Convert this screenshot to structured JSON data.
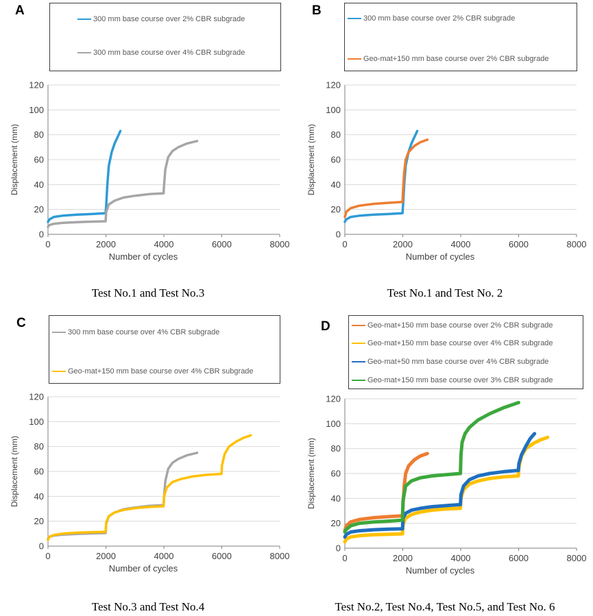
{
  "colors": {
    "blue_light": "#2e9bd6",
    "gray": "#a6a6a6",
    "orange": "#ed7d31",
    "yellow": "#ffc000",
    "blue_dark": "#1f6fc0",
    "green": "#3ca83c",
    "axis": "#7f7f7f",
    "grid": "#d9d9d9"
  },
  "chart_data": [
    {
      "type": "line",
      "panel_label": "A",
      "caption": "Test No.1 and Test No.3",
      "xlabel": "Number of cycles",
      "ylabel": "Displacement (mm)",
      "xlim": [
        0,
        8000
      ],
      "ylim": [
        0,
        120
      ],
      "xticks": [
        0,
        2000,
        4000,
        6000,
        8000
      ],
      "yticks": [
        0,
        20,
        40,
        60,
        80,
        100,
        120
      ],
      "grid": "horizontal",
      "legend_position": "top",
      "series": [
        {
          "name": "300 mm base course over 2% CBR subgrade",
          "color": "#2e9bd6",
          "x": [
            0,
            50,
            200,
            500,
            1000,
            1500,
            1990,
            2010,
            2050,
            2100,
            2200,
            2300,
            2400,
            2500
          ],
          "y": [
            10,
            12,
            14,
            15,
            15.8,
            16.3,
            17,
            23,
            40,
            55,
            66,
            73,
            78,
            83
          ]
        },
        {
          "name": "300 mm base course over 4% CBR subgrade",
          "color": "#a6a6a6",
          "x": [
            0,
            50,
            200,
            500,
            1000,
            1500,
            1990,
            2010,
            2100,
            2300,
            2600,
            3000,
            3500,
            3990,
            4010,
            4050,
            4150,
            4300,
            4500,
            4800,
            5150
          ],
          "y": [
            6,
            7.5,
            8.5,
            9.2,
            9.8,
            10.2,
            10.5,
            18,
            24,
            27,
            29.5,
            31,
            32.3,
            33,
            40,
            52,
            62,
            67,
            70,
            73,
            75
          ]
        }
      ]
    },
    {
      "type": "line",
      "panel_label": "B",
      "caption": "Test No.1 and Test No. 2",
      "xlabel": "Number of cycles",
      "ylabel": "Displacement (mm)",
      "xlim": [
        0,
        8000
      ],
      "ylim": [
        0,
        120
      ],
      "xticks": [
        0,
        2000,
        4000,
        6000,
        8000
      ],
      "yticks": [
        0,
        20,
        40,
        60,
        80,
        100,
        120
      ],
      "grid": "horizontal",
      "legend_position": "top",
      "series": [
        {
          "name": "300 mm base course over 2% CBR subgrade",
          "color": "#2e9bd6",
          "x": [
            0,
            50,
            200,
            500,
            1000,
            1500,
            1990,
            2010,
            2050,
            2100,
            2200,
            2300,
            2400,
            2500
          ],
          "y": [
            10,
            12,
            14,
            15,
            15.8,
            16.3,
            17,
            23,
            40,
            55,
            66,
            73,
            78,
            83
          ]
        },
        {
          "name": "Geo-mat+150 mm base course over 2% CBR subgrade",
          "color": "#ed7d31",
          "x": [
            0,
            50,
            200,
            500,
            1000,
            1500,
            1990,
            2010,
            2050,
            2100,
            2200,
            2400,
            2600,
            2850
          ],
          "y": [
            14,
            18,
            21,
            23,
            24.5,
            25.3,
            26,
            35,
            50,
            60,
            66,
            71,
            74,
            76
          ]
        }
      ]
    },
    {
      "type": "line",
      "panel_label": "C",
      "caption": "Test No.3 and Test No.4",
      "xlabel": "Number of cycles",
      "ylabel": "Displacement (mm)",
      "xlim": [
        0,
        8000
      ],
      "ylim": [
        0,
        120
      ],
      "xticks": [
        0,
        2000,
        4000,
        6000,
        8000
      ],
      "yticks": [
        0,
        20,
        40,
        60,
        80,
        100,
        120
      ],
      "grid": "horizontal",
      "legend_position": "top",
      "series": [
        {
          "name": "300 mm base course over 4% CBR subgrade",
          "color": "#a6a6a6",
          "x": [
            0,
            50,
            200,
            500,
            1000,
            1500,
            1990,
            2010,
            2100,
            2300,
            2600,
            3000,
            3500,
            3990,
            4010,
            4050,
            4150,
            4300,
            4500,
            4800,
            5150
          ],
          "y": [
            6,
            7.5,
            8.5,
            9.2,
            9.8,
            10.2,
            10.5,
            18,
            24,
            27,
            29.5,
            31,
            32.3,
            33,
            40,
            52,
            62,
            67,
            70,
            73,
            75
          ]
        },
        {
          "name": "Geo-mat+150 mm base course over 4% CBR subgrade",
          "color": "#ffc000",
          "x": [
            0,
            50,
            200,
            500,
            1000,
            1500,
            1990,
            2010,
            2100,
            2300,
            2600,
            3000,
            3500,
            3990,
            4010,
            4100,
            4300,
            4600,
            5000,
            5500,
            5990,
            6010,
            6100,
            6250,
            6500,
            6750,
            7000
          ],
          "y": [
            5,
            7.5,
            9,
            10,
            10.8,
            11.2,
            11.5,
            19,
            24,
            27,
            29,
            30.5,
            31.5,
            32,
            40,
            47,
            51.5,
            54,
            56,
            57.3,
            58,
            65,
            74,
            80,
            84,
            87,
            89
          ]
        }
      ]
    },
    {
      "type": "line",
      "panel_label": "D",
      "caption": "Test No.2, Test No.4, Test No.5, and Test No. 6",
      "xlabel": "Number of cycles",
      "ylabel": "Displacement (mm)",
      "xlim": [
        0,
        8000
      ],
      "ylim": [
        0,
        120
      ],
      "xticks": [
        0,
        2000,
        4000,
        6000,
        8000
      ],
      "yticks": [
        0,
        20,
        40,
        60,
        80,
        100,
        120
      ],
      "grid": "horizontal",
      "legend_position": "top",
      "series": [
        {
          "name": "Geo-mat+150 mm base course over 2% CBR subgrade",
          "color": "#ed7d31",
          "x": [
            0,
            50,
            200,
            500,
            1000,
            1500,
            1990,
            2010,
            2050,
            2100,
            2200,
            2400,
            2600,
            2850
          ],
          "y": [
            14,
            18,
            21,
            23,
            24.5,
            25.3,
            26,
            35,
            50,
            60,
            66,
            71,
            74,
            76
          ]
        },
        {
          "name": "Geo-mat+150 mm base course over 4% CBR subgrade",
          "color": "#ffc000",
          "x": [
            0,
            50,
            200,
            500,
            1000,
            1500,
            1990,
            2010,
            2100,
            2300,
            2600,
            3000,
            3500,
            3990,
            4010,
            4100,
            4300,
            4600,
            5000,
            5500,
            5990,
            6010,
            6100,
            6250,
            6500,
            6750,
            7000
          ],
          "y": [
            5,
            7.5,
            9,
            10,
            10.8,
            11.2,
            11.5,
            19,
            24,
            27,
            29,
            30.5,
            31.5,
            32,
            40,
            47,
            51.5,
            54,
            56,
            57.3,
            58,
            65,
            74,
            80,
            84,
            87,
            89
          ]
        },
        {
          "name": "Geo-mat+50 mm base course over 4% CBR subgrade",
          "color": "#1f6fc0",
          "x": [
            0,
            50,
            200,
            500,
            1000,
            1500,
            1990,
            2010,
            2100,
            2300,
            2600,
            3000,
            3500,
            3990,
            4010,
            4100,
            4300,
            4600,
            5000,
            5500,
            5990,
            6010,
            6100,
            6250,
            6400,
            6550
          ],
          "y": [
            9,
            11,
            13,
            14,
            14.8,
            15.3,
            15.5,
            24,
            28,
            30.5,
            32,
            33.3,
            34.2,
            35,
            43,
            50,
            55,
            58,
            60,
            61.5,
            62.5,
            68,
            75,
            82,
            88,
            92
          ]
        },
        {
          "name": "Geo-mat+150 mm base course over 3% CBR subgrade",
          "color": "#3ca83c",
          "x": [
            0,
            50,
            200,
            500,
            1000,
            1500,
            1990,
            2010,
            2100,
            2300,
            2600,
            3000,
            3500,
            3990,
            4010,
            4050,
            4150,
            4300,
            4600,
            5000,
            5500,
            6000
          ],
          "y": [
            13,
            15,
            18,
            20,
            21,
            21.7,
            22.5,
            38,
            50,
            54,
            56.5,
            58,
            59,
            60,
            75,
            85,
            92,
            97,
            103,
            108,
            113,
            117
          ]
        }
      ]
    }
  ]
}
